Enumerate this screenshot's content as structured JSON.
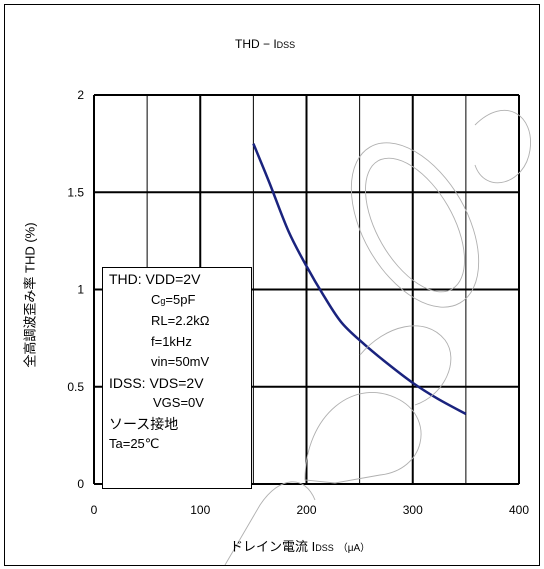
{
  "chart_data": {
    "type": "line",
    "title_main": "THD − I",
    "title_sub": "DSS",
    "xlabel_main": "ドレイン電流  I",
    "xlabel_sub": "DSS",
    "xlabel_unit": "（μA）",
    "ylabel": "全高調波歪み率  THD (%)",
    "xlim": [
      0,
      400
    ],
    "ylim": [
      0,
      2
    ],
    "xticks": [
      0,
      100,
      200,
      300,
      400
    ],
    "yticks": [
      0,
      0.5,
      1,
      1.5,
      2
    ],
    "xtick_labels": [
      "0",
      "100",
      "200",
      "300",
      "400"
    ],
    "ytick_labels": [
      "0",
      "0.5",
      "1",
      "1.5",
      "2"
    ],
    "grid": true,
    "series": [
      {
        "color": "#1a237e",
        "x": [
          150,
          165,
          183,
          200,
          216,
          233,
          254,
          276,
          300,
          323,
          350
        ],
        "y": [
          1.75,
          1.55,
          1.3,
          1.12,
          0.97,
          0.83,
          0.72,
          0.62,
          0.52,
          0.44,
          0.36
        ]
      }
    ],
    "annotation_lines": {
      "l1": "THD: VDD=2V",
      "l2a": "C",
      "l2b": "g",
      "l2c": "=5pF",
      "l3": "RL=2.2kΩ",
      "l4": "f=1kHz",
      "l5": "vin=50mV",
      "l6": "IDSS: VDS=2V",
      "l7": "VGS=0V",
      "l8": "ソース接地",
      "l9": "Ta=25℃"
    }
  }
}
